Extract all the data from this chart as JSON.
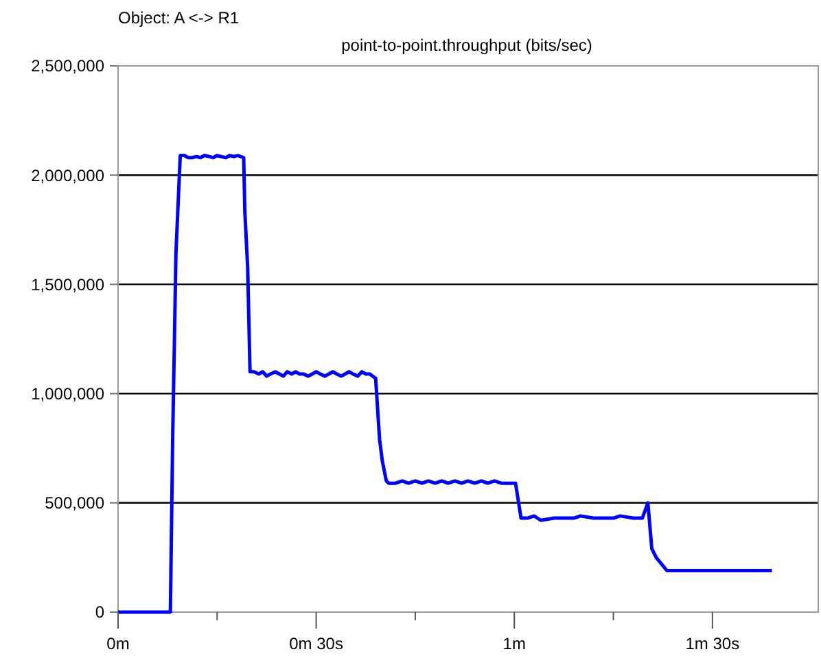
{
  "chart_data": {
    "type": "line",
    "title": "Object: A <-> R1",
    "subtitle": "point-to-point.throughput (bits/sec)",
    "xlabel": null,
    "xlim": [
      0,
      1.767
    ],
    "ylim": [
      0,
      2500000
    ],
    "xticks": [
      {
        "value": 0,
        "label": "0m"
      },
      {
        "value": 0.25,
        "label": null
      },
      {
        "value": 0.5,
        "label": "0m 30s"
      },
      {
        "value": 0.75,
        "label": null
      },
      {
        "value": 1,
        "label": "1m"
      },
      {
        "value": 1.25,
        "label": null
      },
      {
        "value": 1.5,
        "label": "1m 30s"
      }
    ],
    "yticks": [
      0,
      {
        "value": 500000,
        "label": "500,000"
      },
      {
        "value": 1000000,
        "label": "1,000,000"
      },
      {
        "value": 1500000,
        "label": "1,500,000"
      },
      {
        "value": 2000000,
        "label": "2,000,000"
      },
      {
        "value": 2500000,
        "label": "2,500,000"
      }
    ],
    "grid": "y",
    "marker": "none",
    "line_style": "solid",
    "series": [
      {
        "color": "#0000ff",
        "x": [
          0,
          0.132,
          0.135,
          0.138,
          0.142,
          0.146,
          0.153,
          0.157,
          0.167,
          0.177,
          0.187,
          0.198,
          0.208,
          0.218,
          0.23,
          0.24,
          0.25,
          0.26,
          0.272,
          0.282,
          0.292,
          0.302,
          0.317,
          0.32,
          0.327,
          0.333,
          0.343,
          0.355,
          0.365,
          0.375,
          0.385,
          0.397,
          0.407,
          0.417,
          0.427,
          0.438,
          0.448,
          0.458,
          0.468,
          0.48,
          0.49,
          0.5,
          0.51,
          0.522,
          0.532,
          0.542,
          0.552,
          0.563,
          0.573,
          0.583,
          0.593,
          0.605,
          0.615,
          0.625,
          0.635,
          0.65,
          0.66,
          0.667,
          0.677,
          0.683,
          0.7,
          0.717,
          0.733,
          0.75,
          0.767,
          0.783,
          0.8,
          0.817,
          0.833,
          0.85,
          0.867,
          0.883,
          0.9,
          0.917,
          0.933,
          0.95,
          0.967,
          0.983,
          1.003,
          1.017,
          1.033,
          1.05,
          1.067,
          1.1,
          1.133,
          1.15,
          1.167,
          1.2,
          1.233,
          1.25,
          1.267,
          1.3,
          1.323,
          1.337,
          1.347,
          1.358,
          1.385,
          1.5,
          1.65
        ],
        "values": [
          0,
          0,
          412000,
          820000,
          1220000,
          1640000,
          1930000,
          2090000,
          2090000,
          2080000,
          2080000,
          2085000,
          2080000,
          2090000,
          2085000,
          2080000,
          2090000,
          2085000,
          2080000,
          2090000,
          2085000,
          2090000,
          2080000,
          1830000,
          1580000,
          1100000,
          1100000,
          1090000,
          1100000,
          1080000,
          1090000,
          1100000,
          1090000,
          1080000,
          1100000,
          1090000,
          1100000,
          1090000,
          1090000,
          1080000,
          1090000,
          1100000,
          1090000,
          1080000,
          1090000,
          1100000,
          1090000,
          1080000,
          1090000,
          1100000,
          1090000,
          1080000,
          1100000,
          1090000,
          1090000,
          1070000,
          790000,
          690000,
          600000,
          590000,
          590000,
          600000,
          590000,
          600000,
          590000,
          600000,
          590000,
          600000,
          590000,
          600000,
          590000,
          600000,
          590000,
          600000,
          590000,
          600000,
          590000,
          590000,
          590000,
          430000,
          430000,
          440000,
          420000,
          430000,
          430000,
          430000,
          440000,
          430000,
          430000,
          430000,
          440000,
          430000,
          430000,
          500000,
          290000,
          250000,
          190000,
          190000,
          190000
        ]
      }
    ]
  }
}
